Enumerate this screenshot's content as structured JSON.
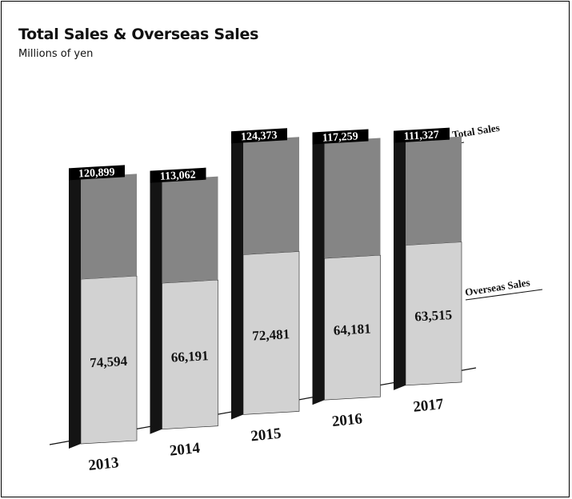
{
  "chart_data": {
    "type": "bar",
    "title": "Total Sales & Overseas Sales",
    "subtitle": "Millions of yen",
    "categories": [
      "2013",
      "2014",
      "2015",
      "2016",
      "2017"
    ],
    "series": [
      {
        "name": "Total Sales",
        "values": [
          120899,
          113062,
          124373,
          117259,
          111327
        ]
      },
      {
        "name": "Overseas Sales",
        "values": [
          74594,
          66191,
          72481,
          64181,
          63515
        ]
      }
    ],
    "stacked_style": "overseas portion shown within total bar",
    "value_labels": {
      "total": [
        "120,899",
        "113,062",
        "124,373",
        "117,259",
        "111,327"
      ],
      "overseas": [
        "74,594",
        "66,191",
        "72,481",
        "64,181",
        "63,515"
      ]
    },
    "colors": {
      "total_portion": "#858585",
      "overseas_portion": "#d2d2d2",
      "bar_side": "#141414",
      "label_box": "#000000",
      "label_text": "#ffffff"
    },
    "style": "3d-perspective",
    "grid": false
  }
}
